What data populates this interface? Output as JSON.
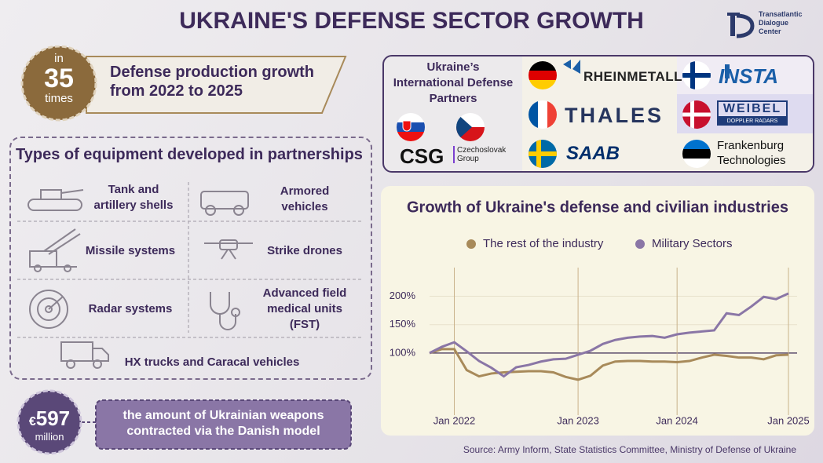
{
  "header": {
    "title": "UKRAINE'S DEFENSE SECTOR GROWTH",
    "logo": [
      "Transatlantic",
      "Dialogue",
      "Center"
    ]
  },
  "growth_badge": {
    "prefix": "in",
    "number": 35,
    "suffix": "times",
    "text": [
      "Defense production growth",
      "from 2022 to 2025"
    ]
  },
  "equipment": {
    "title": "Types of equipment developed in partnerships",
    "items": [
      [
        "Tank and",
        "artillery shells"
      ],
      [
        "Armored",
        "vehicles"
      ],
      [
        "Missile systems"
      ],
      [
        "Strike drones"
      ],
      [
        "Radar systems"
      ],
      [
        "Advanced field",
        "medical units",
        "(FST)"
      ],
      [
        "HX trucks and Caracal vehicles"
      ]
    ]
  },
  "contract": {
    "currency": "€",
    "amount": 597,
    "unit": "million",
    "text": [
      "the amount of Ukrainian weapons",
      "contracted via the Danish model"
    ]
  },
  "partners": {
    "title": [
      "Ukraine’s",
      "International Defense",
      "Partners"
    ],
    "csg": {
      "name": "CSG",
      "full": [
        "Czechoslovak",
        "Group"
      ]
    },
    "companies": [
      "RHEINMETALL",
      "THALES",
      "SAAB",
      "INSTA",
      "WEIBEL",
      "DOPPLER RADARS",
      "Frankenburg",
      "Technologies"
    ]
  },
  "chart_data": {
    "type": "line",
    "title": "Growth of Ukraine's defense and civilian industries",
    "categories": [
      null,
      null,
      "Jan 2022",
      null,
      null,
      null,
      null,
      null,
      null,
      null,
      null,
      null,
      "Jan 2023",
      null,
      null,
      null,
      null,
      null,
      null,
      null,
      "Jan 2024",
      null,
      null,
      null,
      null,
      null,
      null,
      null,
      null,
      "Jan 2025"
    ],
    "series": [
      {
        "name": "The rest of the industry",
        "color": "#a88a5a",
        "values": [
          100,
          107,
          107,
          70,
          59,
          64,
          66,
          67,
          68,
          68,
          66,
          58,
          53,
          60,
          78,
          85,
          86,
          86,
          85,
          85,
          84,
          86,
          92,
          97,
          95,
          92,
          92,
          89,
          96,
          97
        ]
      },
      {
        "name": "Military Sectors",
        "color": "#8a76a6",
        "values": [
          100,
          111,
          119,
          103,
          86,
          74,
          59,
          75,
          79,
          85,
          89,
          90,
          97,
          104,
          116,
          123,
          127,
          129,
          130,
          127,
          133,
          136,
          138,
          140,
          170,
          167,
          182,
          199,
          195,
          205
        ]
      }
    ],
    "ylim": [
      10,
      245
    ],
    "yticks": [
      {
        "value": 100,
        "label": "100%"
      },
      {
        "value": 150,
        "label": "150%"
      },
      {
        "value": 200,
        "label": "200%"
      }
    ],
    "grid": true
  },
  "source": "Source: Army Inform, State Statistics Committee, Ministry of Defense of Ukraine"
}
